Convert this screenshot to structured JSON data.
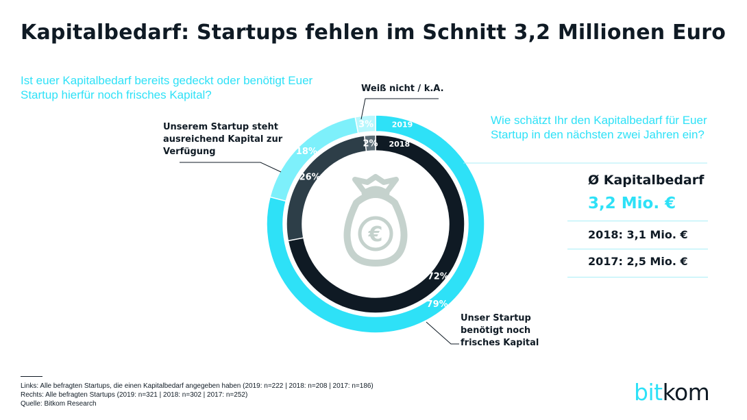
{
  "title": "Kapitalbedarf: Startups fehlen im Schnitt 3,2 Millionen Euro",
  "question_left": "Ist euer Kapitalbedarf bereits gedeckt oder benötigt Euer Startup hierfür noch frisches Kapital?",
  "question_right": "Wie schätzt Ihr den Kapitalbedarf für Euer Startup in den nächsten zwei Jahren ein?",
  "labels": {
    "dunno": "Weiß nicht / k.A.",
    "enough": "Unserem Startup steht ausreichend Kapital zur Verfügung",
    "need": "Unser Startup benötigt noch frisches Kapital"
  },
  "kpi": {
    "title": "Ø Kapitalbedarf",
    "value": "3,2 Mio. €",
    "row_2018": "2018:  3,1 Mio. €",
    "row_2017": "2017:  2,5 Mio. €"
  },
  "colors": {
    "outer_need": "#2ee1f7",
    "outer_enough": "#7df0fb",
    "outer_dunno": "#b8f7fd",
    "inner_need": "#0f1a24",
    "inner_enough": "#2d3e48",
    "inner_dunno": "#5d6e78",
    "icon": "#c5d2cd"
  },
  "chart_data": {
    "type": "donut",
    "categories": [
      "Unser Startup benötigt noch frisches Kapital",
      "Unserem Startup steht ausreichend Kapital zur Verfügung",
      "Weiß nicht / k.A."
    ],
    "series": [
      {
        "name": "2019",
        "ring": "outer",
        "values": [
          79,
          18,
          3
        ],
        "labels": [
          "79%",
          "18%",
          "3%"
        ]
      },
      {
        "name": "2018",
        "ring": "inner",
        "values": [
          72,
          26,
          2
        ],
        "labels": [
          "72%",
          "26%",
          "2%"
        ]
      }
    ],
    "center_icon": "money-bag-euro-icon"
  },
  "footnotes": [
    "Links: Alle befragten Startups, die einen Kapitalbedarf angegeben haben (2019: n=222 | 2018: n=208 | 2017: n=186)",
    "Rechts: Alle befragten Startups (2019: n=321 | 2018: n=302 | 2017: n=252)",
    "Quelle: Bitkom Research"
  ],
  "logo": {
    "part1": "bit",
    "part2": "kom"
  }
}
